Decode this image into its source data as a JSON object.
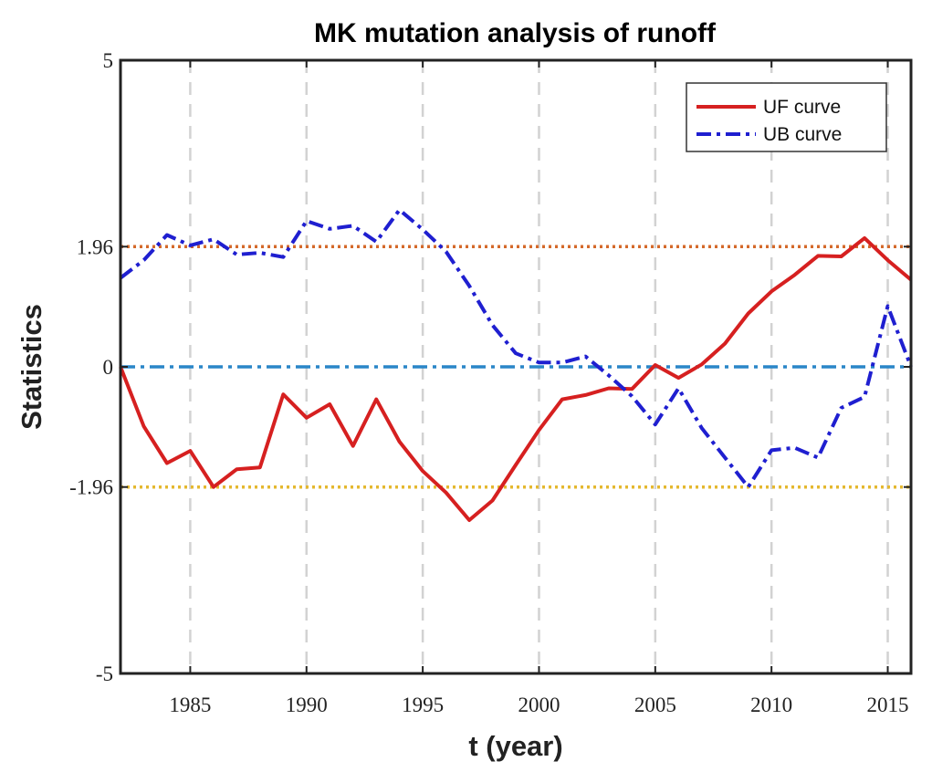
{
  "chart_data": {
    "type": "line",
    "title": "MK mutation analysis of runoff",
    "xlabel": "t (year)",
    "ylabel": "Statistics",
    "xlim": [
      1982,
      2016
    ],
    "ylim": [
      -5,
      5
    ],
    "x_ticks": [
      1985,
      1990,
      1995,
      2000,
      2005,
      2010,
      2015
    ],
    "y_ticks": [
      {
        "value": -5,
        "label": "-5"
      },
      {
        "value": -1.96,
        "label": "-1.96"
      },
      {
        "value": 0,
        "label": "0"
      },
      {
        "value": 1.96,
        "label": "1.96"
      },
      {
        "value": 5,
        "label": "5"
      }
    ],
    "grid": "vertical dashed",
    "legend_position": "top-right",
    "x": [
      1982,
      1983,
      1984,
      1985,
      1986,
      1987,
      1988,
      1989,
      1990,
      1991,
      1992,
      1993,
      1994,
      1995,
      1996,
      1997,
      1998,
      1999,
      2000,
      2001,
      2002,
      2003,
      2004,
      2005,
      2006,
      2007,
      2008,
      2009,
      2010,
      2011,
      2012,
      2013,
      2014,
      2015,
      2016
    ],
    "series": [
      {
        "name": "UF curve",
        "color": "#d62020",
        "style": "solid",
        "values": [
          0.0,
          -0.97,
          -1.57,
          -1.37,
          -1.96,
          -1.67,
          -1.64,
          -0.45,
          -0.83,
          -0.61,
          -1.29,
          -0.53,
          -1.22,
          -1.7,
          -2.05,
          -2.5,
          -2.18,
          -1.6,
          -1.03,
          -0.53,
          -0.46,
          -0.35,
          -0.36,
          0.03,
          -0.18,
          0.04,
          0.38,
          0.87,
          1.23,
          1.5,
          1.81,
          1.8,
          2.1,
          1.74,
          1.42
        ]
      },
      {
        "name": "UB curve",
        "color": "#1f1fd0",
        "style": "dashdot",
        "values": [
          1.45,
          1.74,
          2.15,
          1.98,
          2.08,
          1.83,
          1.86,
          1.79,
          2.38,
          2.25,
          2.3,
          2.04,
          2.56,
          2.24,
          1.88,
          1.32,
          0.68,
          0.22,
          0.07,
          0.07,
          0.17,
          -0.14,
          -0.48,
          -0.94,
          -0.35,
          -1.0,
          -1.48,
          -1.96,
          -1.36,
          -1.32,
          -1.48,
          -0.67,
          -0.49,
          0.99,
          0.0
        ]
      }
    ],
    "reference_lines": [
      {
        "name": "upper-critical",
        "value": 1.96,
        "color": "#d4692a",
        "style": "dotted"
      },
      {
        "name": "zero",
        "value": 0,
        "color": "#2a86c8",
        "style": "dashdot"
      },
      {
        "name": "lower-critical",
        "value": -1.96,
        "color": "#e5b82f",
        "style": "dotted"
      }
    ]
  }
}
